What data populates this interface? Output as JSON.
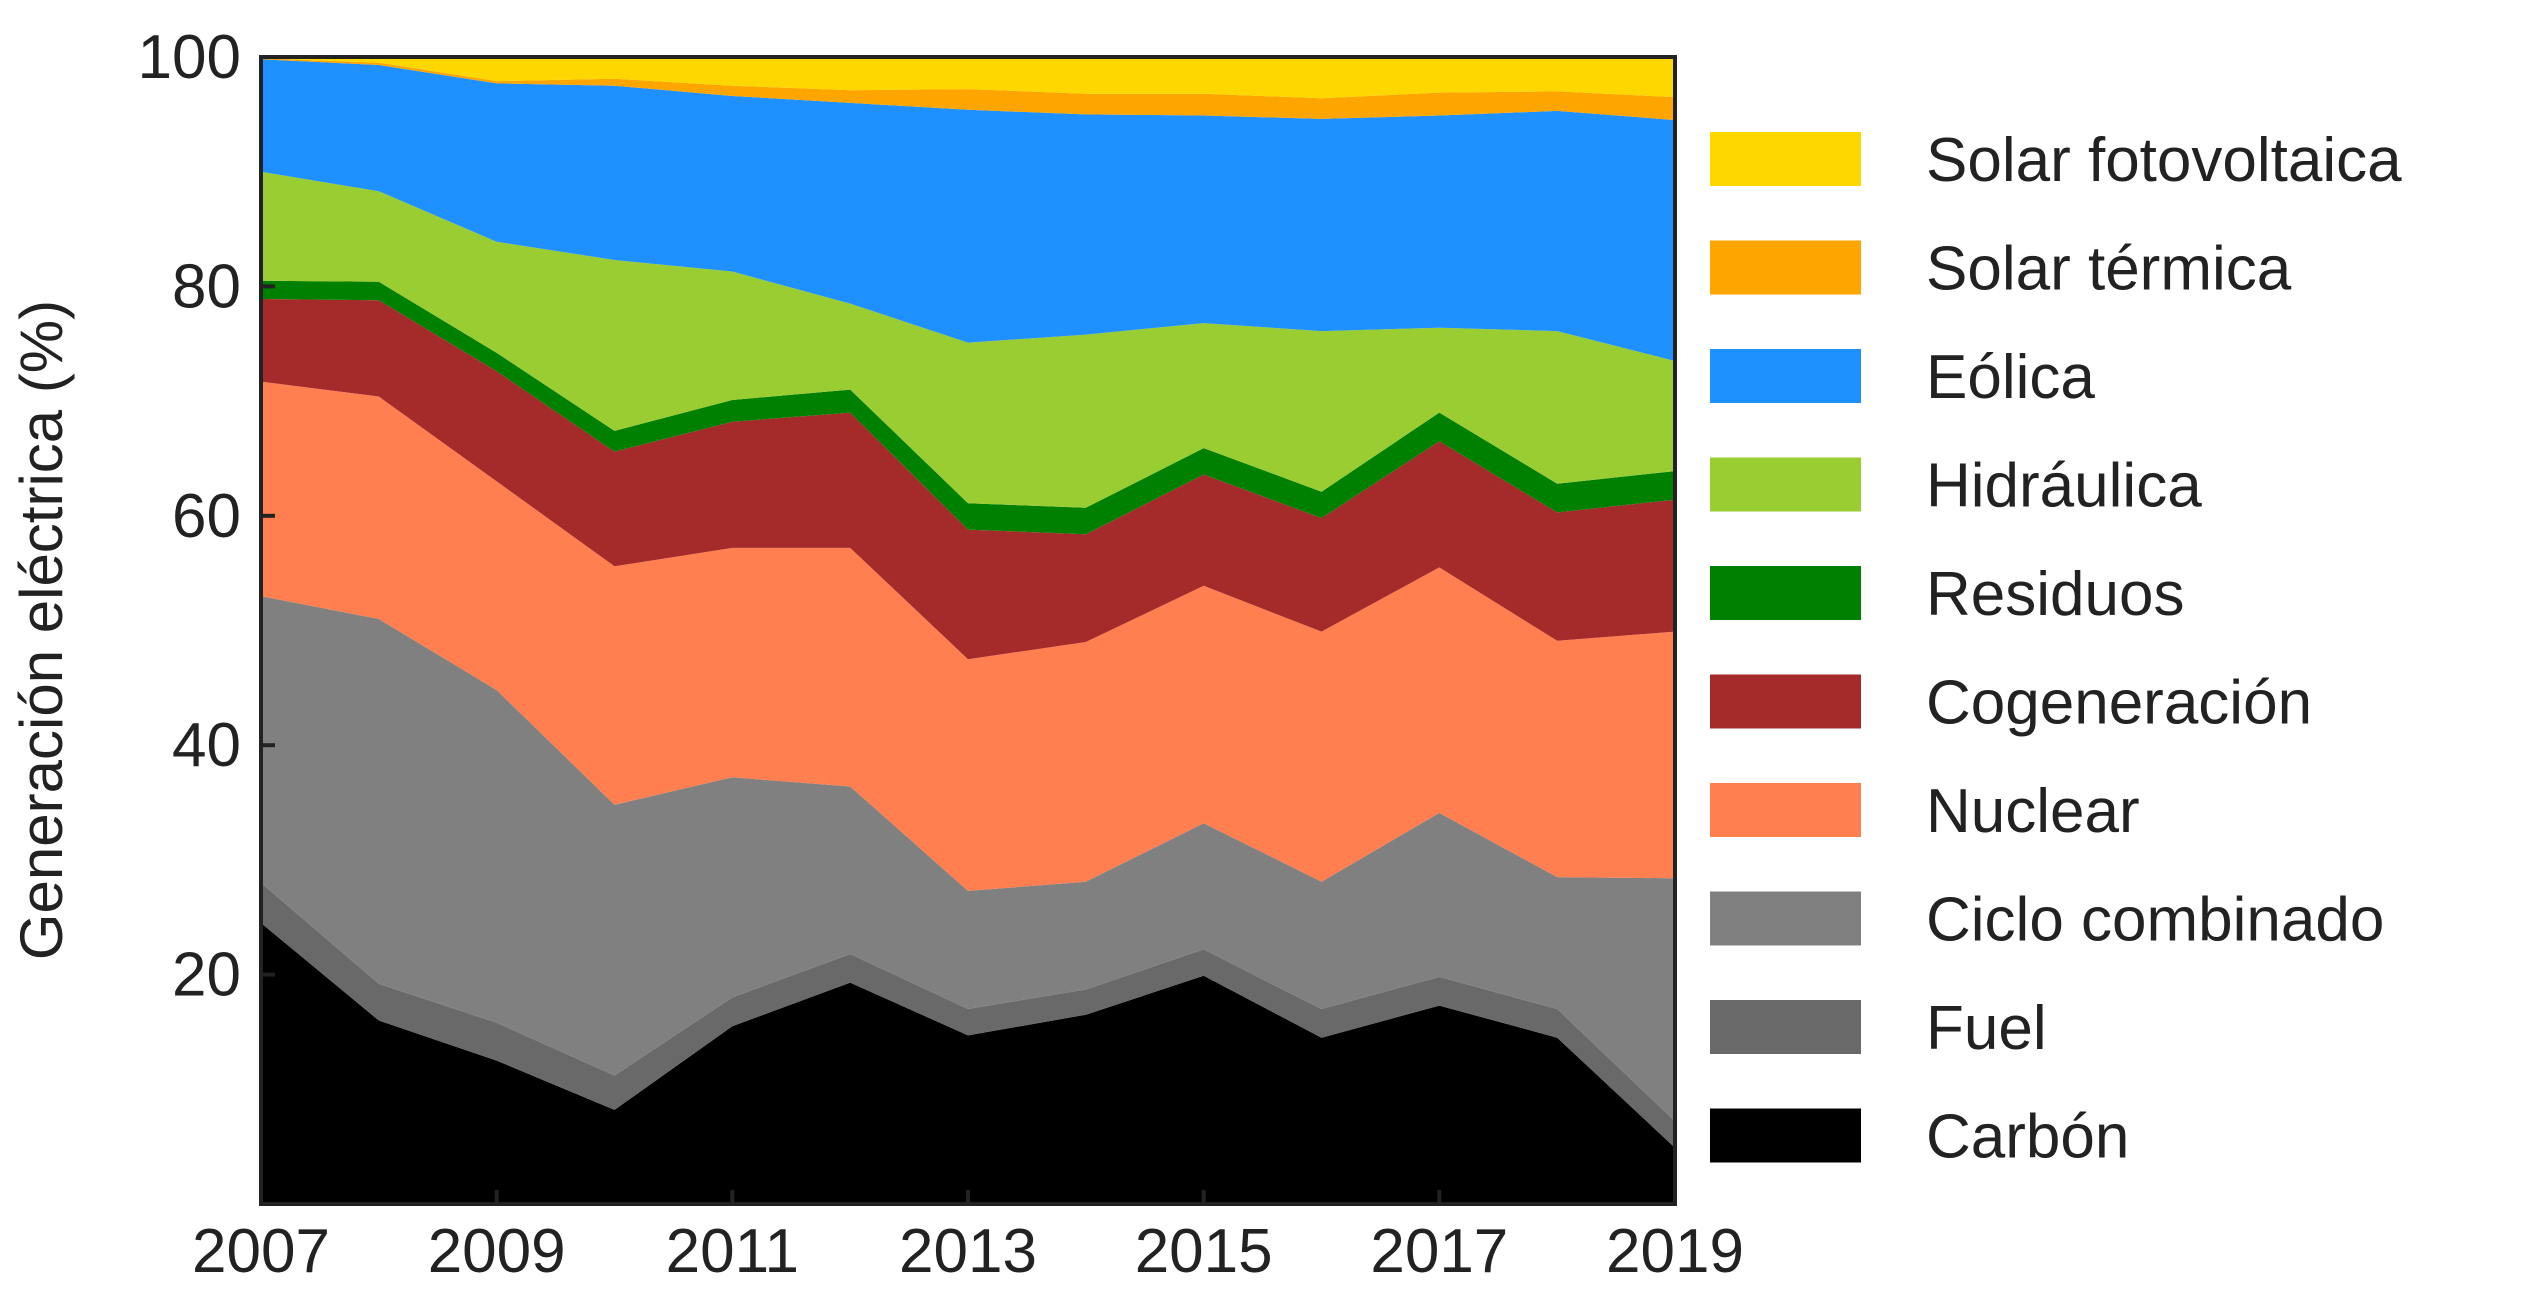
{
  "chart_data": {
    "type": "area",
    "stacked": true,
    "title": "",
    "xlabel": "",
    "ylabel": "Generación eléctrica (%)",
    "xlim": [
      2007,
      2019
    ],
    "ylim": [
      0,
      100
    ],
    "x": [
      2007,
      2008,
      2009,
      2010,
      2011,
      2012,
      2013,
      2014,
      2015,
      2016,
      2017,
      2018,
      2019
    ],
    "x_ticks": [
      2007,
      2009,
      2011,
      2013,
      2015,
      2017,
      2019
    ],
    "y_ticks": [
      20,
      40,
      60,
      80,
      100
    ],
    "grid": false,
    "legend_position": "right",
    "series": [
      {
        "name": "Carbón",
        "color": "#000000",
        "values": [
          24.5,
          16.0,
          12.5,
          8.2,
          15.5,
          19.3,
          14.7,
          16.5,
          19.9,
          14.5,
          17.3,
          14.5,
          4.9
        ]
      },
      {
        "name": "Fuel",
        "color": "#696969",
        "values": [
          3.5,
          3.2,
          3.3,
          3.0,
          2.5,
          2.5,
          2.3,
          2.2,
          2.3,
          2.5,
          2.5,
          2.5,
          2.3
        ]
      },
      {
        "name": "Ciclo combinado",
        "color": "#808080",
        "values": [
          25.0,
          31.8,
          29.0,
          23.6,
          19.2,
          14.6,
          10.3,
          9.4,
          11.0,
          11.1,
          14.3,
          11.5,
          21.2
        ]
      },
      {
        "name": "Nuclear",
        "color": "#ff7f50",
        "values": [
          18.7,
          19.4,
          18.2,
          20.8,
          20.0,
          20.8,
          20.2,
          20.9,
          20.7,
          21.8,
          21.4,
          20.6,
          21.5
        ]
      },
      {
        "name": "Cogeneración",
        "color": "#a52a2a",
        "values": [
          7.2,
          8.4,
          9.6,
          10.0,
          11.0,
          11.8,
          11.3,
          9.4,
          9.7,
          9.9,
          11.0,
          11.2,
          11.5
        ]
      },
      {
        "name": "Residuos",
        "color": "#008000",
        "values": [
          1.6,
          1.6,
          1.6,
          1.8,
          1.9,
          2.0,
          2.3,
          2.3,
          2.3,
          2.3,
          2.5,
          2.5,
          2.5
        ]
      },
      {
        "name": "Hidráulica",
        "color": "#9acd32",
        "values": [
          9.5,
          7.9,
          9.7,
          14.9,
          11.2,
          7.5,
          14.0,
          15.1,
          10.9,
          14.0,
          7.4,
          13.3,
          9.6
        ]
      },
      {
        "name": "Eólica",
        "color": "#1e90ff",
        "values": [
          9.8,
          11.0,
          13.8,
          15.2,
          15.3,
          17.5,
          20.3,
          19.2,
          18.1,
          18.5,
          18.5,
          19.2,
          21.0
        ]
      },
      {
        "name": "Solar térmica",
        "color": "#ffa500",
        "values": [
          0.1,
          0.2,
          0.2,
          0.6,
          0.9,
          1.1,
          1.8,
          1.8,
          1.9,
          1.8,
          2.0,
          1.7,
          2.0
        ]
      },
      {
        "name": "Solar fotovoltaica",
        "color": "#ffd700",
        "values": [
          0.1,
          0.5,
          2.1,
          1.9,
          2.5,
          2.9,
          2.8,
          3.2,
          3.2,
          3.6,
          3.1,
          3.0,
          3.5
        ]
      }
    ]
  }
}
